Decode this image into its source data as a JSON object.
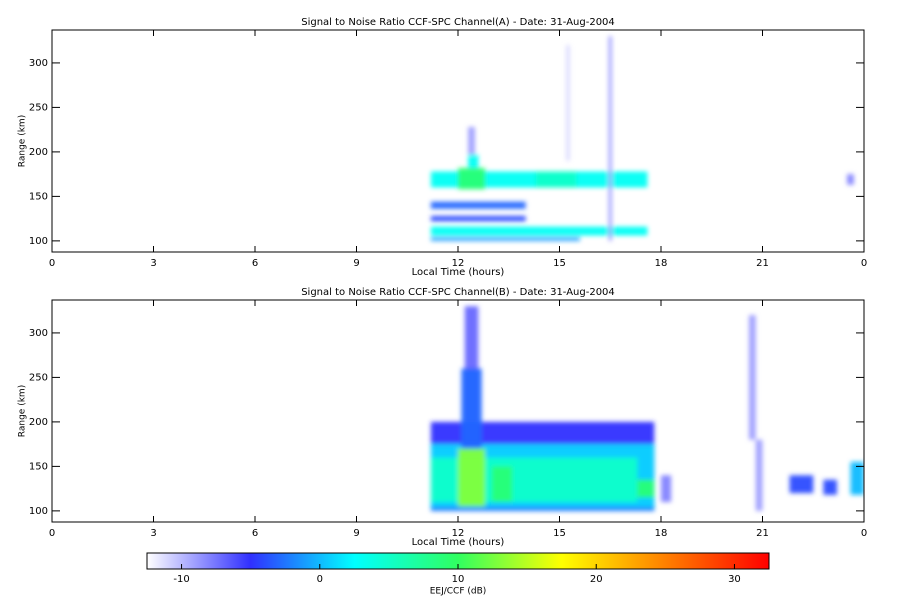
{
  "chart_data": {
    "type": "heatmap",
    "xlim": [
      0,
      24
    ],
    "xticks": [
      0,
      3,
      6,
      9,
      12,
      15,
      18,
      21,
      {
        "value": 24,
        "label": "0"
      }
    ],
    "ylim": [
      87.5,
      337
    ],
    "yticks": [
      100,
      150,
      200,
      250,
      300
    ],
    "xlabel": "Local Time (hours)",
    "ylabel": "Range (km)",
    "panels": [
      {
        "title": "Signal to Noise Ratio CCF-SPC Channel(A) - Date: 31-Aug-2004",
        "cells": [
          {
            "t": [
              11.2,
              17.6
            ],
            "r": [
              160,
              178
            ],
            "v": 3
          },
          {
            "t": [
              12.0,
              12.8
            ],
            "r": [
              158,
              182
            ],
            "v": 9
          },
          {
            "t": [
              12.3,
              12.6
            ],
            "r": [
              182,
              197
            ],
            "v": 3
          },
          {
            "t": [
              14.3,
              15.5
            ],
            "r": [
              160,
              178
            ],
            "v": 5
          },
          {
            "t": [
              11.2,
              17.6
            ],
            "r": [
              106,
              116
            ],
            "v": 3
          },
          {
            "t": [
              11.2,
              15.6
            ],
            "r": [
              100,
              104
            ],
            "v": -1
          },
          {
            "t": [
              11.2,
              14.0
            ],
            "r": [
              122,
              128
            ],
            "v": -4
          },
          {
            "t": [
              11.2,
              14.0
            ],
            "r": [
              136,
              144
            ],
            "v": -3
          },
          {
            "t": [
              16.45,
              16.55
            ],
            "r": [
              100,
              330
            ],
            "v": -9
          },
          {
            "t": [
              15.2,
              15.3
            ],
            "r": [
              190,
              320
            ],
            "v": -11
          },
          {
            "t": [
              12.3,
              12.5
            ],
            "r": [
              197,
              228
            ],
            "v": -9
          },
          {
            "t": [
              23.5,
              23.7
            ],
            "r": [
              163,
              175
            ],
            "v": -8
          }
        ]
      },
      {
        "title": "Signal to Noise Ratio CCF-SPC Channel(B) - Date: 31-Aug-2004",
        "cells": [
          {
            "t": [
              11.2,
              17.8
            ],
            "r": [
              100,
              200
            ],
            "v": -5
          },
          {
            "t": [
              11.2,
              17.8
            ],
            "r": [
              104,
              175
            ],
            "v": 1
          },
          {
            "t": [
              11.2,
              17.3
            ],
            "r": [
              110,
              160
            ],
            "v": 5
          },
          {
            "t": [
              12.0,
              12.8
            ],
            "r": [
              105,
              170
            ],
            "v": 13
          },
          {
            "t": [
              12.2,
              12.6
            ],
            "r": [
              200,
              330
            ],
            "v": -7
          },
          {
            "t": [
              12.1,
              12.7
            ],
            "r": [
              170,
              260
            ],
            "v": -3
          },
          {
            "t": [
              13.0,
              13.6
            ],
            "r": [
              110,
              150
            ],
            "v": 9
          },
          {
            "t": [
              11.2,
              17.8
            ],
            "r": [
              100,
              104
            ],
            "v": -2
          },
          {
            "t": [
              17.3,
              17.8
            ],
            "r": [
              115,
              135
            ],
            "v": 9
          },
          {
            "t": [
              20.6,
              20.8
            ],
            "r": [
              180,
              320
            ],
            "v": -9
          },
          {
            "t": [
              20.8,
              21.0
            ],
            "r": [
              100,
              180
            ],
            "v": -9
          },
          {
            "t": [
              21.8,
              22.5
            ],
            "r": [
              120,
              140
            ],
            "v": -4
          },
          {
            "t": [
              22.8,
              23.2
            ],
            "r": [
              118,
              135
            ],
            "v": -4
          },
          {
            "t": [
              23.6,
              24
            ],
            "r": [
              118,
              155
            ],
            "v": 0
          },
          {
            "t": [
              18.0,
              18.3
            ],
            "r": [
              110,
              140
            ],
            "v": -8
          }
        ]
      }
    ],
    "colorbar": {
      "label": "EEJ/CCF (dB)",
      "lim": [
        -12.5,
        32.5
      ],
      "ticks": [
        -10,
        0,
        10,
        20,
        30
      ],
      "colors": [
        "#ffffff",
        "#3030ff",
        "#00ffff",
        "#30ff60",
        "#ffff00",
        "#ff8000",
        "#ff0000"
      ]
    }
  }
}
